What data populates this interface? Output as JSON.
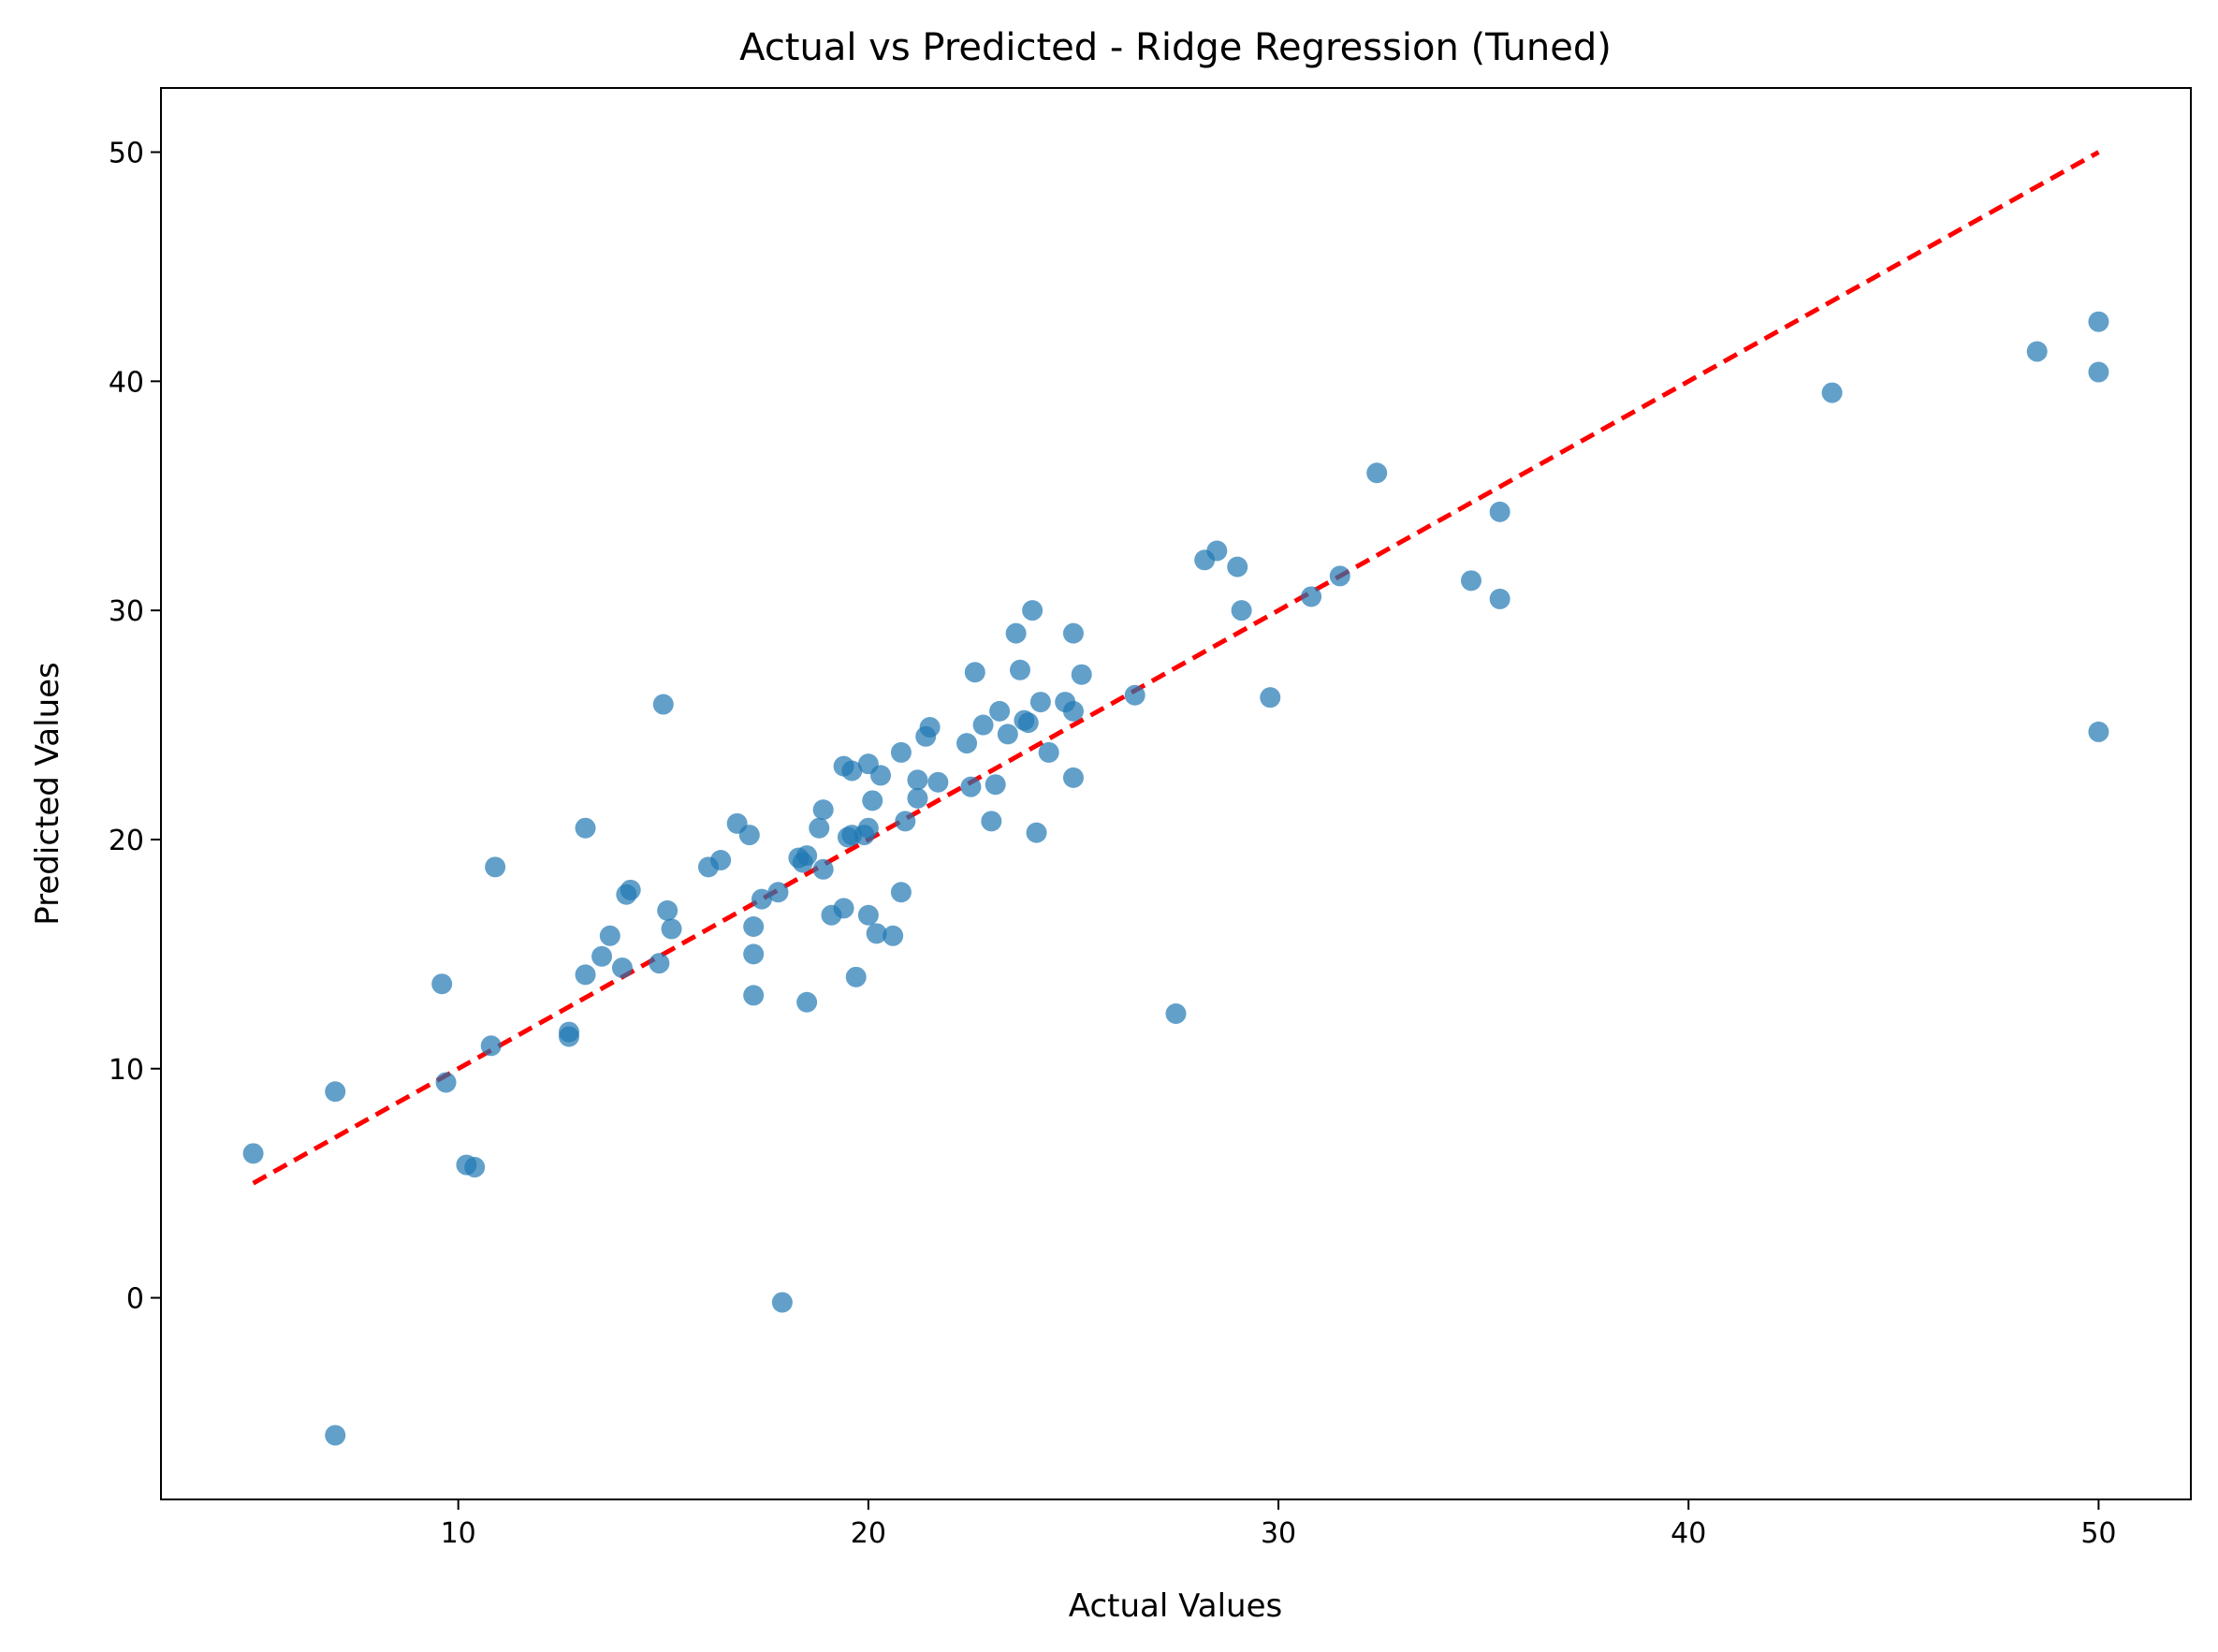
{
  "chart_data": {
    "type": "scatter",
    "title": "Actual vs Predicted - Ridge Regression (Tuned)",
    "xlabel": "Actual Values",
    "ylabel": "Predicted Values",
    "xlim": [
      2.75,
      52.25
    ],
    "ylim": [
      -8.8,
      52.8
    ],
    "xticks": [
      10,
      20,
      30,
      40,
      50
    ],
    "yticks": [
      0,
      10,
      20,
      30,
      40,
      50
    ],
    "grid": false,
    "legend": "none",
    "colors": {
      "points": "#1f77b4",
      "reference_line": "#ff0000"
    },
    "reference_line": {
      "style": "dashed",
      "x": [
        5,
        50
      ],
      "y": [
        5,
        50
      ]
    },
    "points": [
      [
        5.0,
        6.3
      ],
      [
        7.0,
        9.0
      ],
      [
        7.0,
        -6.0
      ],
      [
        9.6,
        13.7
      ],
      [
        9.7,
        9.4
      ],
      [
        10.2,
        5.8
      ],
      [
        10.4,
        5.7
      ],
      [
        10.8,
        11.0
      ],
      [
        10.9,
        18.8
      ],
      [
        12.7,
        11.4
      ],
      [
        12.7,
        11.6
      ],
      [
        13.1,
        14.1
      ],
      [
        13.1,
        20.5
      ],
      [
        13.5,
        14.9
      ],
      [
        13.7,
        15.8
      ],
      [
        14.0,
        14.4
      ],
      [
        14.1,
        17.6
      ],
      [
        14.2,
        17.8
      ],
      [
        14.9,
        14.6
      ],
      [
        15.0,
        25.9
      ],
      [
        15.1,
        16.9
      ],
      [
        15.2,
        16.1
      ],
      [
        16.1,
        18.8
      ],
      [
        16.4,
        19.1
      ],
      [
        16.8,
        20.7
      ],
      [
        17.1,
        20.2
      ],
      [
        17.2,
        16.2
      ],
      [
        17.2,
        15.0
      ],
      [
        17.2,
        13.2
      ],
      [
        17.4,
        17.4
      ],
      [
        17.8,
        17.7
      ],
      [
        17.9,
        -0.2
      ],
      [
        18.3,
        19.2
      ],
      [
        18.4,
        19.0
      ],
      [
        18.5,
        19.3
      ],
      [
        18.5,
        12.9
      ],
      [
        18.8,
        20.5
      ],
      [
        18.9,
        21.3
      ],
      [
        18.9,
        18.7
      ],
      [
        19.1,
        16.7
      ],
      [
        19.4,
        23.2
      ],
      [
        19.4,
        17.0
      ],
      [
        19.5,
        20.1
      ],
      [
        19.6,
        23.0
      ],
      [
        19.6,
        20.2
      ],
      [
        19.7,
        14.0
      ],
      [
        19.9,
        20.2
      ],
      [
        20.0,
        23.3
      ],
      [
        20.0,
        20.5
      ],
      [
        20.0,
        16.7
      ],
      [
        20.1,
        21.7
      ],
      [
        20.2,
        15.9
      ],
      [
        20.3,
        22.8
      ],
      [
        20.6,
        15.8
      ],
      [
        20.8,
        23.8
      ],
      [
        20.8,
        17.7
      ],
      [
        20.9,
        20.8
      ],
      [
        21.2,
        22.6
      ],
      [
        21.2,
        21.8
      ],
      [
        21.4,
        24.5
      ],
      [
        21.5,
        24.9
      ],
      [
        21.7,
        22.5
      ],
      [
        22.4,
        24.2
      ],
      [
        22.5,
        22.3
      ],
      [
        22.6,
        27.3
      ],
      [
        22.8,
        25.0
      ],
      [
        23.0,
        20.8
      ],
      [
        23.1,
        22.4
      ],
      [
        23.2,
        25.6
      ],
      [
        23.4,
        24.6
      ],
      [
        23.6,
        29.0
      ],
      [
        23.7,
        27.4
      ],
      [
        23.8,
        25.2
      ],
      [
        23.9,
        25.1
      ],
      [
        24.0,
        30.0
      ],
      [
        24.1,
        20.3
      ],
      [
        24.2,
        26.0
      ],
      [
        24.4,
        23.8
      ],
      [
        24.8,
        26.0
      ],
      [
        25.0,
        25.6
      ],
      [
        25.0,
        29.0
      ],
      [
        25.0,
        22.7
      ],
      [
        25.2,
        27.2
      ],
      [
        26.5,
        26.3
      ],
      [
        27.5,
        12.4
      ],
      [
        28.2,
        32.2
      ],
      [
        28.5,
        32.6
      ],
      [
        29.0,
        31.9
      ],
      [
        29.1,
        30.0
      ],
      [
        29.8,
        26.2
      ],
      [
        30.8,
        30.6
      ],
      [
        31.5,
        31.5
      ],
      [
        32.4,
        36.0
      ],
      [
        34.7,
        31.3
      ],
      [
        35.4,
        34.3
      ],
      [
        35.4,
        30.5
      ],
      [
        43.5,
        39.5
      ],
      [
        48.5,
        41.3
      ],
      [
        50.0,
        42.6
      ],
      [
        50.0,
        40.4
      ],
      [
        50.0,
        24.7
      ]
    ]
  }
}
